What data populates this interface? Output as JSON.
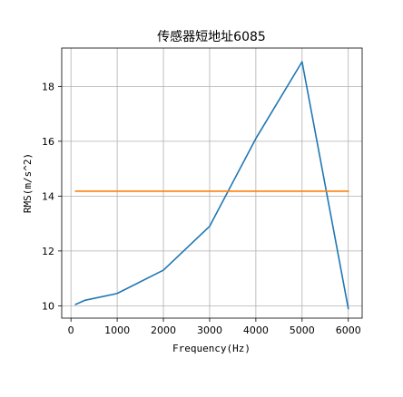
{
  "chart_data": {
    "type": "line",
    "title": "传感器短地址6085",
    "xlabel": "Frequency(Hz)",
    "ylabel": "RMS(m/s^2)",
    "xlim": [
      -200,
      6300
    ],
    "ylim": [
      9.55,
      19.4
    ],
    "xticks": [
      0,
      1000,
      2000,
      3000,
      4000,
      5000,
      6000
    ],
    "xtick_labels": [
      "0",
      "1000",
      "2000",
      "3000",
      "4000",
      "5000",
      "6000"
    ],
    "yticks": [
      10,
      12,
      14,
      16,
      18
    ],
    "ytick_labels": [
      "10",
      "12",
      "14",
      "16",
      "18"
    ],
    "grid": true,
    "legend": "none",
    "series": [
      {
        "color": "#1f77b4",
        "x": [
          100,
          300,
          1000,
          2000,
          3000,
          4000,
          5000,
          6000
        ],
        "y": [
          10.05,
          10.2,
          10.45,
          11.3,
          12.9,
          16.1,
          18.9,
          9.9
        ]
      },
      {
        "color": "#ff7f0e",
        "x": [
          100,
          6000
        ],
        "y": [
          14.18,
          14.18
        ]
      }
    ]
  }
}
